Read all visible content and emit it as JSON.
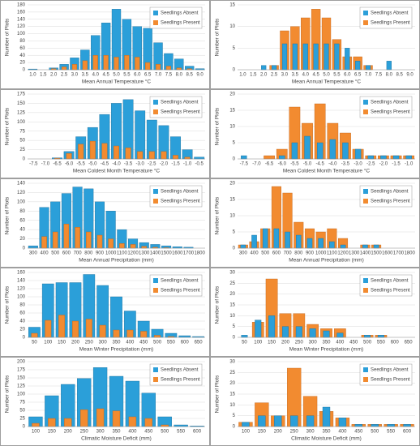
{
  "chart_data": [
    {
      "type": "bar",
      "xlabel": "Mean Annual Temperature °C",
      "ylabel": "Number of Plots",
      "legend": "top-right",
      "categories": [
        "1.0",
        "1.5",
        "2.0",
        "2.5",
        "3.0",
        "3.5",
        "4.0",
        "4.5",
        "5.0",
        "5.5",
        "6.0",
        "6.5",
        "7.0",
        "7.5",
        "8.0",
        "8.5",
        "9.0"
      ],
      "series": [
        {
          "name": "Seedlings Absent",
          "color": "#2b9fd9",
          "values": [
            2,
            0,
            5,
            15,
            33,
            55,
            95,
            130,
            168,
            140,
            120,
            115,
            75,
            45,
            30,
            10,
            3
          ]
        },
        {
          "name": "Seedlings Present",
          "color": "#f28b30",
          "values": [
            0,
            0,
            3,
            8,
            15,
            25,
            40,
            40,
            35,
            40,
            35,
            20,
            15,
            10,
            5,
            3,
            0
          ]
        }
      ],
      "ylim": [
        0,
        180
      ],
      "yticks": [
        0,
        20,
        40,
        60,
        80,
        100,
        120,
        140,
        160,
        180
      ],
      "grid": true
    },
    {
      "type": "bar",
      "xlabel": "Mean Annual Temperature °C",
      "ylabel": "Number of Plots",
      "legend": "top-right",
      "categories": [
        "1.0",
        "1.5",
        "2.0",
        "2.5",
        "3.0",
        "3.5",
        "4.0",
        "4.5",
        "5.0",
        "5.5",
        "6.0",
        "6.5",
        "7.0",
        "7.5",
        "8.0",
        "8.5",
        "9.0"
      ],
      "series": [
        {
          "name": "Seedlings Absent",
          "color": "#2b9fd9",
          "values": [
            0,
            0,
            1,
            1,
            6,
            6,
            6,
            6,
            6,
            6,
            5,
            2,
            1,
            0,
            2,
            0,
            0
          ]
        },
        {
          "name": "Seedlings Present",
          "color": "#f28b30",
          "values": [
            0,
            0,
            0,
            1,
            9,
            10,
            12,
            14,
            12,
            7,
            3,
            3,
            1,
            0,
            0,
            0,
            0
          ]
        }
      ],
      "ylim": [
        0,
        15
      ],
      "yticks": [
        0,
        5,
        10,
        15
      ],
      "grid": true
    },
    {
      "type": "bar",
      "xlabel": "Mean Coldest Month Temperature °C",
      "ylabel": "Number of Plots",
      "legend": "top-right",
      "categories": [
        "-7.5",
        "-7.0",
        "-6.5",
        "-6.0",
        "-5.5",
        "-5.0",
        "-4.5",
        "-4.0",
        "-3.5",
        "-3.0",
        "-2.5",
        "-2.0",
        "-1.5",
        "-1.0",
        "-0.5"
      ],
      "series": [
        {
          "name": "Seedlings Absent",
          "color": "#2b9fd9",
          "values": [
            0,
            0,
            3,
            20,
            60,
            85,
            120,
            150,
            160,
            130,
            105,
            90,
            60,
            25,
            5
          ]
        },
        {
          "name": "Seedlings Present",
          "color": "#f28b30",
          "values": [
            0,
            0,
            2,
            15,
            40,
            48,
            42,
            35,
            30,
            20,
            20,
            20,
            10,
            5,
            0
          ]
        }
      ],
      "ylim": [
        0,
        175
      ],
      "yticks": [
        0,
        25,
        50,
        75,
        100,
        125,
        150,
        175
      ],
      "grid": true
    },
    {
      "type": "bar",
      "xlabel": "Mean Coldest Month Temperature °C",
      "ylabel": "Number of Plots",
      "legend": "top-right",
      "categories": [
        "-7.5",
        "-7.0",
        "-6.5",
        "-6.0",
        "-5.5",
        "-5.0",
        "-4.5",
        "-4.0",
        "-3.5",
        "-3.0",
        "-2.5",
        "-2.0",
        "-1.5",
        "-1.0"
      ],
      "series": [
        {
          "name": "Seedlings Absent",
          "color": "#2b9fd9",
          "values": [
            1,
            0,
            0,
            1,
            5,
            7,
            5,
            6,
            5,
            3,
            1,
            1,
            1,
            1
          ]
        },
        {
          "name": "Seedlings Present",
          "color": "#f28b30",
          "values": [
            0,
            0,
            1,
            3,
            16,
            11,
            17,
            11,
            8,
            3,
            1,
            1,
            1,
            1
          ]
        }
      ],
      "ylim": [
        0,
        20
      ],
      "yticks": [
        0,
        5,
        10,
        15,
        20
      ],
      "grid": true
    },
    {
      "type": "bar",
      "xlabel": "Mean Annual Precipitation (mm)",
      "ylabel": "Number of Plots",
      "legend": "top-right",
      "categories": [
        "300",
        "400",
        "500",
        "600",
        "700",
        "800",
        "900",
        "1000",
        "1100",
        "1200",
        "1300",
        "1400",
        "1500",
        "1600",
        "1700",
        "1800"
      ],
      "series": [
        {
          "name": "Seedlings Absent",
          "color": "#2b9fd9",
          "values": [
            5,
            88,
            100,
            118,
            132,
            128,
            100,
            80,
            40,
            20,
            12,
            8,
            5,
            3,
            2,
            0
          ]
        },
        {
          "name": "Seedlings Present",
          "color": "#f28b30",
          "values": [
            0,
            25,
            35,
            52,
            45,
            35,
            28,
            20,
            10,
            8,
            4,
            2,
            1,
            0,
            0,
            0
          ]
        }
      ],
      "ylim": [
        0,
        140
      ],
      "yticks": [
        0,
        20,
        40,
        60,
        80,
        100,
        120,
        140
      ],
      "grid": true
    },
    {
      "type": "bar",
      "xlabel": "Mean Annual Precipitation (mm)",
      "ylabel": "Number of Plots",
      "legend": "top-right",
      "categories": [
        "300",
        "400",
        "500",
        "600",
        "700",
        "800",
        "900",
        "1000",
        "1100",
        "1200",
        "1300",
        "1400",
        "1500",
        "1600",
        "1700",
        "1800"
      ],
      "series": [
        {
          "name": "Seedlings Absent",
          "color": "#2b9fd9",
          "values": [
            1,
            4,
            6,
            6,
            5,
            4,
            3,
            3,
            2,
            1,
            0,
            1,
            1,
            0,
            0,
            0
          ]
        },
        {
          "name": "Seedlings Present",
          "color": "#f28b30",
          "values": [
            1,
            2,
            6,
            19,
            17,
            8,
            6,
            5,
            6,
            3,
            0,
            1,
            1,
            0,
            0,
            0
          ]
        }
      ],
      "ylim": [
        0,
        20
      ],
      "yticks": [
        0,
        5,
        10,
        15,
        20
      ],
      "grid": true
    },
    {
      "type": "bar",
      "xlabel": "Mean Winter Precipitation (mm)",
      "ylabel": "Number of Plots",
      "legend": "top-right",
      "categories": [
        "50",
        "100",
        "150",
        "200",
        "250",
        "300",
        "350",
        "400",
        "450",
        "500",
        "550",
        "600",
        "650"
      ],
      "series": [
        {
          "name": "Seedlings Absent",
          "color": "#2b9fd9",
          "values": [
            25,
            132,
            135,
            135,
            155,
            128,
            100,
            65,
            40,
            20,
            10,
            4,
            2
          ]
        },
        {
          "name": "Seedlings Present",
          "color": "#f28b30",
          "values": [
            10,
            42,
            55,
            40,
            45,
            30,
            18,
            18,
            15,
            5,
            2,
            0,
            0
          ]
        }
      ],
      "ylim": [
        0,
        160
      ],
      "yticks": [
        0,
        20,
        40,
        60,
        80,
        100,
        120,
        140,
        160
      ],
      "grid": true
    },
    {
      "type": "bar",
      "xlabel": "Mean Winter Precipitation (mm)",
      "ylabel": "Number of Plots",
      "legend": "top-right",
      "categories": [
        "50",
        "100",
        "150",
        "200",
        "250",
        "300",
        "350",
        "400",
        "450",
        "500",
        "550",
        "600",
        "650"
      ],
      "series": [
        {
          "name": "Seedlings Absent",
          "color": "#2b9fd9",
          "values": [
            1,
            8,
            10,
            5,
            5,
            4,
            3,
            2,
            0,
            1,
            1,
            0,
            0
          ]
        },
        {
          "name": "Seedlings Present",
          "color": "#f28b30",
          "values": [
            0,
            7,
            27,
            11,
            11,
            6,
            4,
            4,
            0,
            1,
            1,
            0,
            0
          ]
        }
      ],
      "ylim": [
        0,
        30
      ],
      "yticks": [
        0,
        5,
        10,
        15,
        20,
        25,
        30
      ],
      "grid": true
    },
    {
      "type": "bar",
      "xlabel": "Climatic Moisture Deficit (mm)",
      "ylabel": "Number of Plots",
      "legend": "top-right",
      "categories": [
        "100",
        "150",
        "200",
        "250",
        "300",
        "350",
        "400",
        "450",
        "500",
        "550",
        "600"
      ],
      "series": [
        {
          "name": "Seedlings Absent",
          "color": "#2b9fd9",
          "values": [
            30,
            95,
            130,
            148,
            182,
            155,
            140,
            103,
            30,
            5,
            2
          ]
        },
        {
          "name": "Seedlings Present",
          "color": "#f28b30",
          "values": [
            10,
            25,
            25,
            52,
            55,
            48,
            30,
            25,
            5,
            0,
            0
          ]
        }
      ],
      "ylim": [
        0,
        200
      ],
      "yticks": [
        0,
        25,
        50,
        75,
        100,
        125,
        150,
        175,
        200
      ],
      "grid": true
    },
    {
      "type": "bar",
      "xlabel": "Climatic Moisture Deficit (mm)",
      "ylabel": "Number of Plots",
      "legend": "top-right",
      "categories": [
        "100",
        "150",
        "200",
        "250",
        "300",
        "350",
        "400",
        "450",
        "500",
        "550",
        "600"
      ],
      "series": [
        {
          "name": "Seedlings Absent",
          "color": "#2b9fd9",
          "values": [
            2,
            5,
            5,
            5,
            5,
            9,
            4,
            1,
            1,
            1,
            1
          ]
        },
        {
          "name": "Seedlings Present",
          "color": "#f28b30",
          "values": [
            2,
            11,
            5,
            27,
            14,
            7,
            4,
            1,
            1,
            1,
            1
          ]
        }
      ],
      "ylim": [
        0,
        30
      ],
      "yticks": [
        0,
        5,
        10,
        15,
        20,
        25,
        30
      ],
      "grid": true
    }
  ]
}
